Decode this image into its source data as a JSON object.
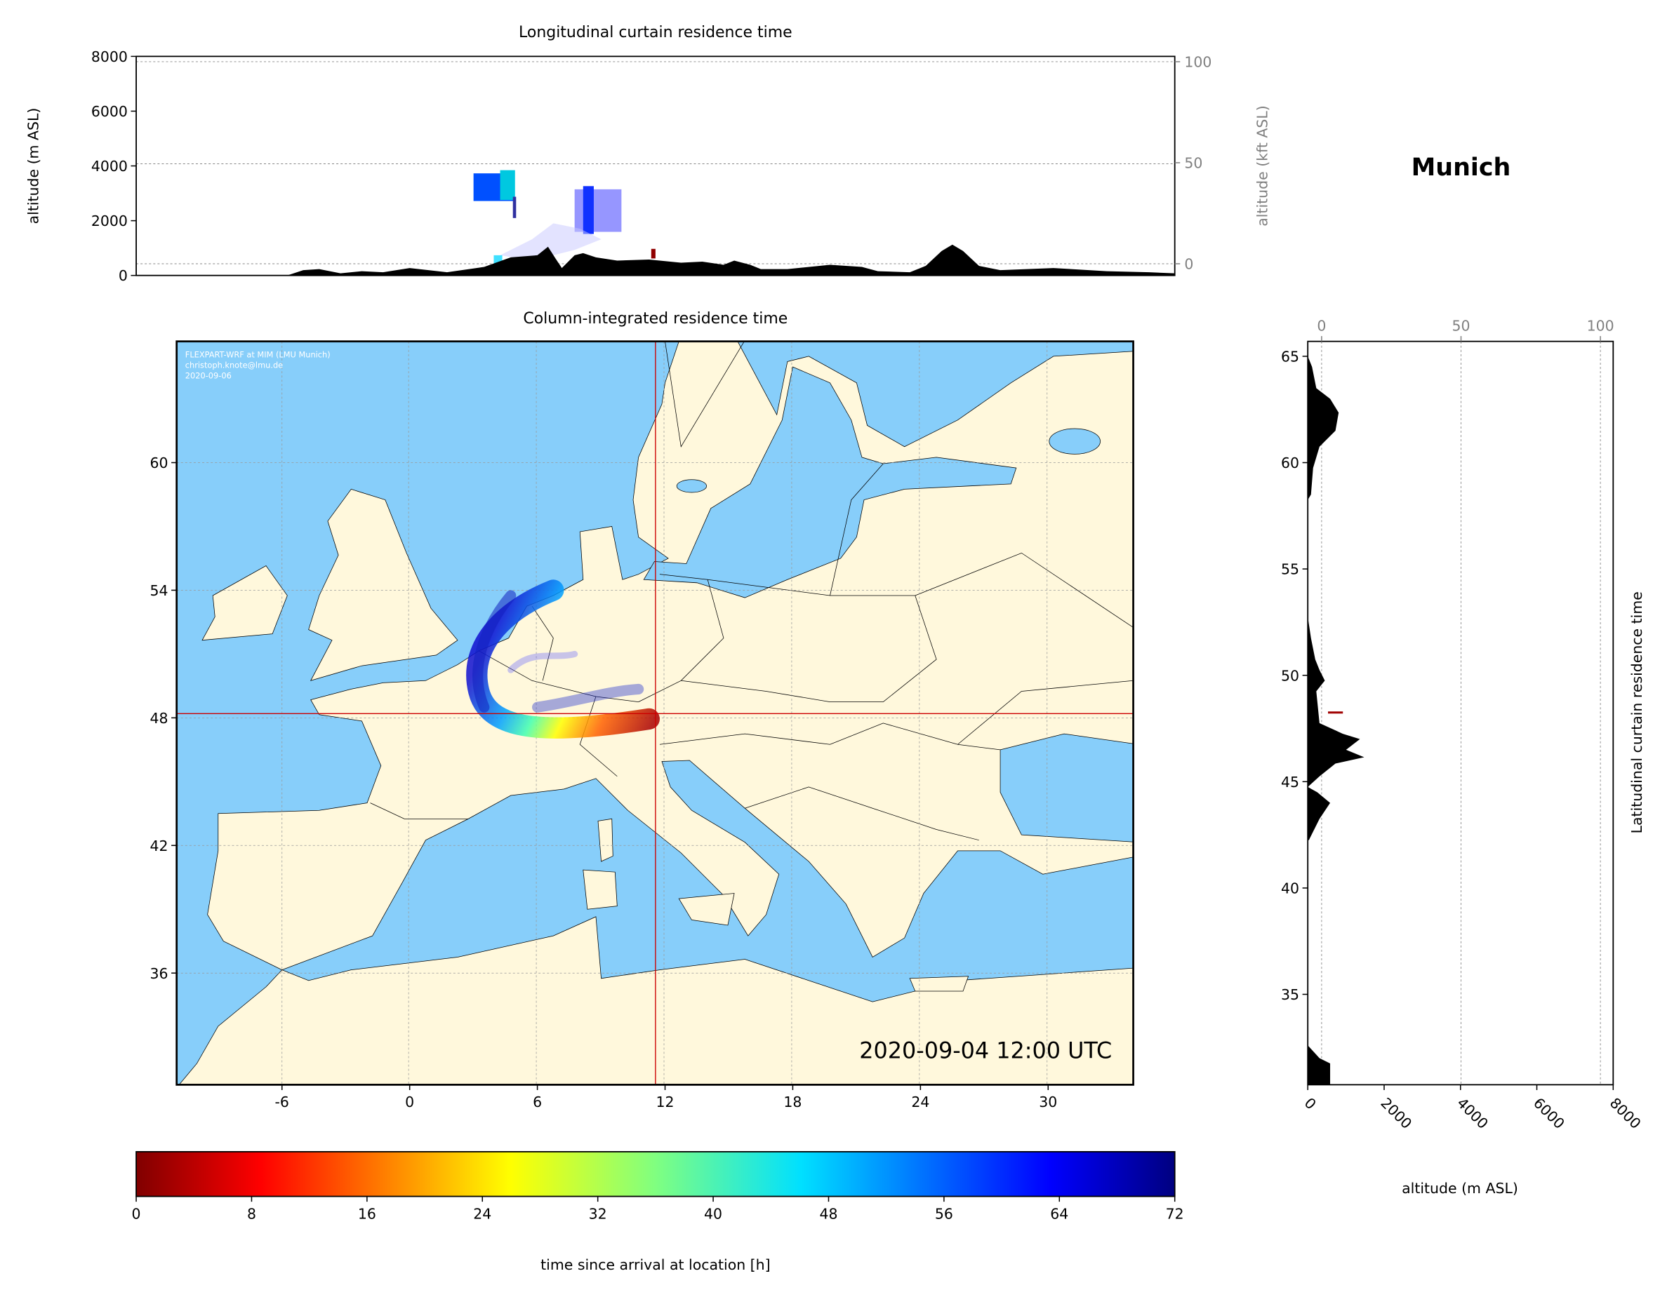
{
  "location": "Munich",
  "curtain_lon": {
    "title": "Longitudinal curtain residence time",
    "ylabel_left": "altitude (m ASL)",
    "ylabel_right": "altitude (kft ASL)",
    "yticks_left": [
      "0",
      "2000",
      "4000",
      "6000",
      "8000"
    ],
    "yticks_right": [
      "0",
      "50",
      "100"
    ]
  },
  "map": {
    "title": "Column-integrated residence time",
    "xticks": [
      "-6",
      "0",
      "6",
      "12",
      "18",
      "24",
      "30"
    ],
    "yticks": [
      "60",
      "54",
      "48",
      "42",
      "36"
    ],
    "watermark": [
      "FLEXPART-WRF at MIM (LMU Munich)",
      "christoph.knote@lmu.de",
      "2020-09-06"
    ],
    "timestamp": "2020-09-04 12:00 UTC",
    "colors": {
      "ocean": "#87CEFA",
      "land": "#FFF8DC",
      "crosshair": "#CC0000"
    }
  },
  "curtain_lat": {
    "ylabel_right": "Latitudinal curtain residence time",
    "xlabel": "altitude (m ASL)",
    "yticks": [
      "65",
      "60",
      "55",
      "50",
      "45",
      "40",
      "35"
    ],
    "xticks_bottom": [
      "0",
      "2000",
      "4000",
      "6000",
      "8000"
    ],
    "xticks_top": [
      "0",
      "50",
      "100"
    ]
  },
  "colorbar": {
    "label": "time since arrival at location [h]",
    "ticks": [
      "0",
      "8",
      "16",
      "24",
      "32",
      "40",
      "48",
      "56",
      "64",
      "72"
    ],
    "colormap": "jet",
    "range": [
      0,
      72
    ]
  }
}
